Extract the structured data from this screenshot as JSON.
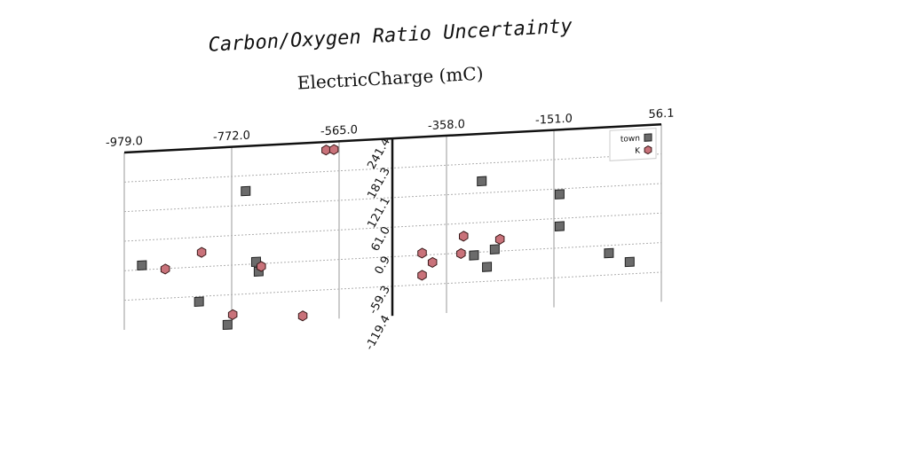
{
  "chart_data": {
    "type": "scatter",
    "title": "Carbon/Oxygen Ratio Uncertainty",
    "xlabel": "ElectricCharge (mC)",
    "ylabel": "",
    "x_ticks": [
      "-979.0",
      "-772.0",
      "-565.0",
      "-358.0",
      "-151.0",
      "56.1"
    ],
    "y_ticks": [
      "241.4",
      "181.3",
      "121.1",
      "61.0",
      "0.9",
      "-59.3",
      "-119.4"
    ],
    "xlim": [
      -979.0,
      56.1
    ],
    "ylim": [
      -119.4,
      241.4
    ],
    "grid": true,
    "legend_position": "top-right",
    "series": [
      {
        "name": "town",
        "marker": "square",
        "color": "#6b6b6b",
        "points": [
          {
            "x": -945,
            "y": 10
          },
          {
            "x": -835,
            "y": -70
          },
          {
            "x": -745,
            "y": 150
          },
          {
            "x": -725,
            "y": 5
          },
          {
            "x": -720,
            "y": -15
          },
          {
            "x": -780,
            "y": -120
          },
          {
            "x": -290,
            "y": 145
          },
          {
            "x": -305,
            "y": -5
          },
          {
            "x": -280,
            "y": -30
          },
          {
            "x": -265,
            "y": 5
          },
          {
            "x": -140,
            "y": 110
          },
          {
            "x": -140,
            "y": 45
          },
          {
            "x": -45,
            "y": -15
          },
          {
            "x": -5,
            "y": -35
          }
        ]
      },
      {
        "name": "K",
        "marker": "hexagon",
        "color": "#c9727a",
        "points": [
          {
            "x": -590,
            "y": 225
          },
          {
            "x": -575,
            "y": 225
          },
          {
            "x": -830,
            "y": 30
          },
          {
            "x": -900,
            "y": 0
          },
          {
            "x": -715,
            "y": -5
          },
          {
            "x": -770,
            "y": -100
          },
          {
            "x": -635,
            "y": -110
          },
          {
            "x": -405,
            "y": 5
          },
          {
            "x": -385,
            "y": -15
          },
          {
            "x": -405,
            "y": -40
          },
          {
            "x": -325,
            "y": 35
          },
          {
            "x": -330,
            "y": 0
          },
          {
            "x": -255,
            "y": 25
          }
        ]
      }
    ]
  }
}
